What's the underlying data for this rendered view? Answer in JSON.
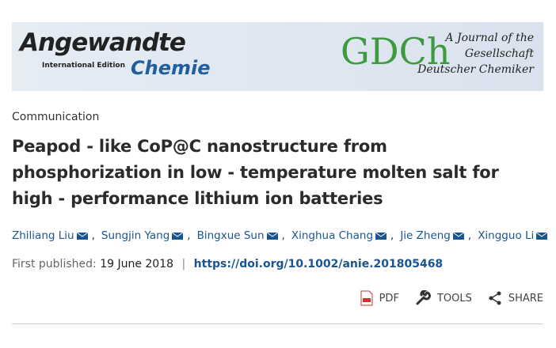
{
  "banner": {
    "journal": "Angewandte",
    "edition": "International Edition",
    "subtitle": "Chemie",
    "society": "GDCh",
    "tagline": [
      "A Journal of the",
      "Gesellschaft",
      "Deutscher Chemiker"
    ]
  },
  "article": {
    "type": "Communication",
    "title_lines": [
      "Peapod ‐ like CoP@C nanostructure from",
      "phosphorization in low ‐ temperature molten salt for",
      "high ‐ performance lithium ion batteries"
    ],
    "author_separator": ",",
    "authors": [
      "Zhiliang Liu",
      "Sungjin Yang",
      "Bingxue Sun",
      "Xinghua Chang",
      "Jie Zheng",
      "Xingguo Li"
    ],
    "published_label": "First published:",
    "published_date": "19 June 2018",
    "divider": "|",
    "doi": "https://doi.org/10.1002/anie.201805468"
  },
  "actions": [
    "PDF",
    "TOOLS",
    "SHARE"
  ]
}
